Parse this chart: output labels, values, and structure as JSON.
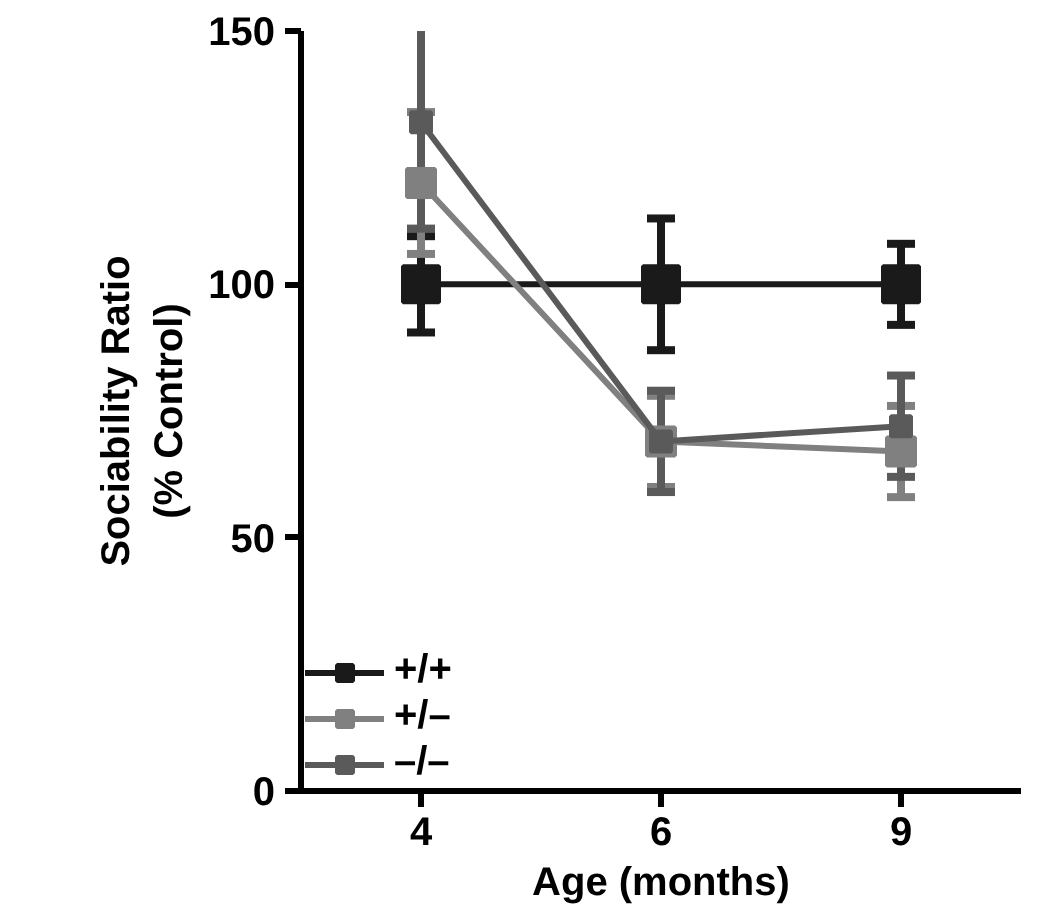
{
  "chart_data": {
    "type": "line",
    "xlabel": "Age (months)",
    "ylabel": "Sociability Ratio\n(% Control)",
    "categories": [
      "4",
      "6",
      "9"
    ],
    "series": [
      {
        "name": "+/+",
        "color": "#1a1a1a",
        "values": [
          100,
          100,
          100
        ],
        "errors": [
          9.5,
          13,
          8
        ]
      },
      {
        "name": "+/–",
        "color": "#808080",
        "values": [
          120,
          69,
          67
        ],
        "errors": [
          14,
          9,
          9
        ]
      },
      {
        "name": "–/–",
        "color": "#5a5a5a",
        "values": [
          132,
          69,
          72
        ],
        "errors": [
          21,
          10,
          10
        ]
      }
    ],
    "ylim": [
      0,
      150
    ],
    "yticks": [
      0,
      50,
      100,
      150
    ],
    "grid": false,
    "legend": "bottom left",
    "marker": "square",
    "line_style": "solid"
  }
}
